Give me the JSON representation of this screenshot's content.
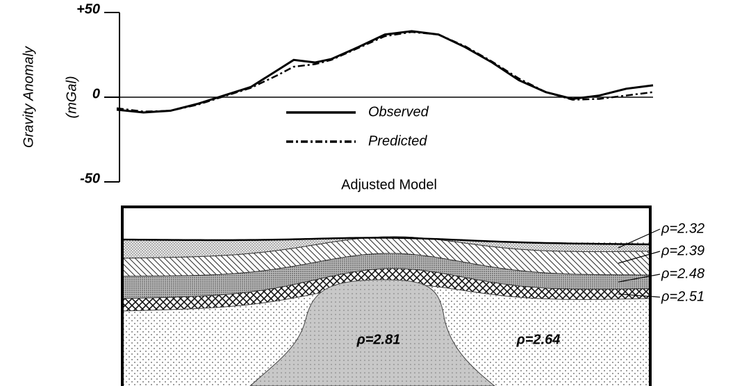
{
  "chart_data": {
    "type": "line",
    "ylabel": "Gravity Anomaly",
    "yunit": "(mGal)",
    "ylim": [
      -50,
      50
    ],
    "yticks": [
      {
        "value": 50,
        "label": "+50"
      },
      0,
      -50
    ],
    "xlim": [
      0,
      100
    ],
    "x": [
      0,
      5,
      10,
      15,
      20,
      25,
      30,
      33,
      37,
      40,
      45,
      50,
      55,
      60,
      65,
      70,
      75,
      80,
      85,
      90,
      95,
      100
    ],
    "series": [
      {
        "name": "Observed",
        "color": "#000000",
        "line_style": "solid",
        "values": [
          -7.4,
          -9,
          -8,
          -4,
          1,
          6,
          16,
          22,
          20.5,
          22.5,
          29.5,
          37,
          39,
          37,
          29.5,
          20.5,
          10,
          3,
          -1,
          1,
          5,
          7
        ]
      },
      {
        "name": "Predicted",
        "color": "#000000",
        "line_style": "dashed",
        "values": [
          -6.5,
          -8.5,
          -8,
          -4.5,
          0.5,
          5.5,
          13,
          18,
          19.5,
          22,
          29,
          36,
          38.5,
          37,
          30,
          21,
          11,
          3,
          -1.5,
          -1,
          1,
          3
        ]
      }
    ],
    "model": {
      "title": "Adjusted Model",
      "layers": [
        "ρ=2.32",
        "ρ=2.39",
        "ρ=2.48",
        "ρ=2.51"
      ],
      "body": "ρ=2.81",
      "basement": "ρ=2.64"
    }
  }
}
